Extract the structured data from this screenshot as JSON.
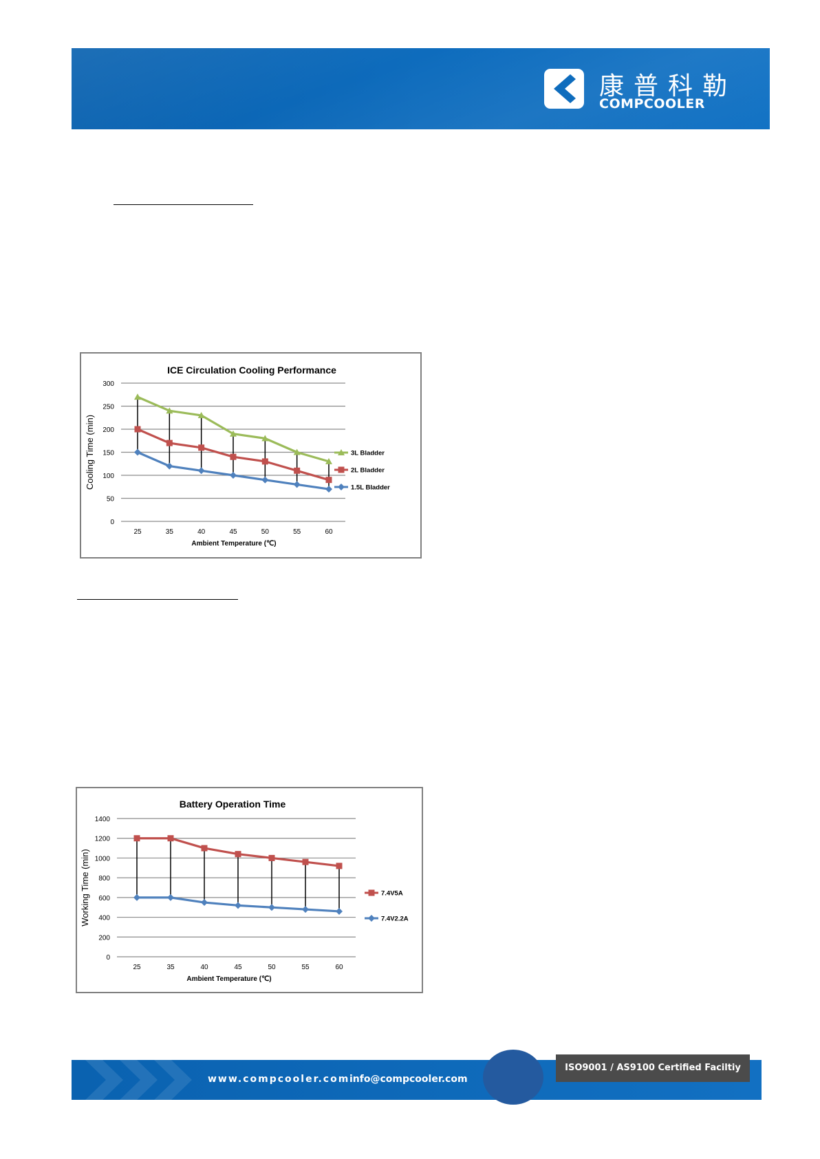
{
  "header": {
    "logo_cn": "康普科勒",
    "logo_en": "COMPCOOLER"
  },
  "footer": {
    "website": "www.compcooler.com",
    "email": "info@compcooler.com",
    "certification": "ISO9001 / AS9100 Certified Faciltiy"
  },
  "colors": {
    "brand_blue": "#0e6cbd",
    "series_green": "#9bbb59",
    "series_red": "#c0504d",
    "series_blue": "#4f81bd"
  },
  "chart_data": [
    {
      "type": "line",
      "title": "ICE Circulation Cooling Performance",
      "xlabel": "Ambient Temperature (℃)",
      "ylabel": "Cooling Time (min)",
      "categories": [
        "25",
        "35",
        "40",
        "45",
        "50",
        "55",
        "60"
      ],
      "ylim": [
        0,
        300
      ],
      "yticks": [
        0,
        50,
        100,
        150,
        200,
        250,
        300
      ],
      "grid": true,
      "legend": "right",
      "series": [
        {
          "name": "3L Bladder",
          "color": "#9bbb59",
          "marker": "triangle",
          "values": [
            270,
            240,
            230,
            190,
            180,
            150,
            130
          ]
        },
        {
          "name": "2L Bladder",
          "color": "#c0504d",
          "marker": "square",
          "values": [
            200,
            170,
            160,
            140,
            130,
            110,
            90
          ]
        },
        {
          "name": "1.5L Bladder",
          "color": "#4f81bd",
          "marker": "diamond",
          "values": [
            150,
            120,
            110,
            100,
            90,
            80,
            70
          ]
        }
      ]
    },
    {
      "type": "line",
      "title": "Battery Operation Time",
      "xlabel": "Ambient Temperature (℃)",
      "ylabel": "Working Time (min)",
      "categories": [
        "25",
        "35",
        "40",
        "45",
        "50",
        "55",
        "60"
      ],
      "ylim": [
        0,
        1400
      ],
      "yticks": [
        0,
        200,
        400,
        600,
        800,
        1000,
        1200,
        1400
      ],
      "grid": true,
      "legend": "right",
      "series": [
        {
          "name": "7.4V5A",
          "color": "#c0504d",
          "marker": "square",
          "values": [
            1200,
            1200,
            1100,
            1040,
            1000,
            960,
            920
          ]
        },
        {
          "name": "7.4V2.2A",
          "color": "#4f81bd",
          "marker": "diamond",
          "values": [
            600,
            600,
            550,
            520,
            500,
            480,
            460
          ]
        }
      ]
    }
  ]
}
